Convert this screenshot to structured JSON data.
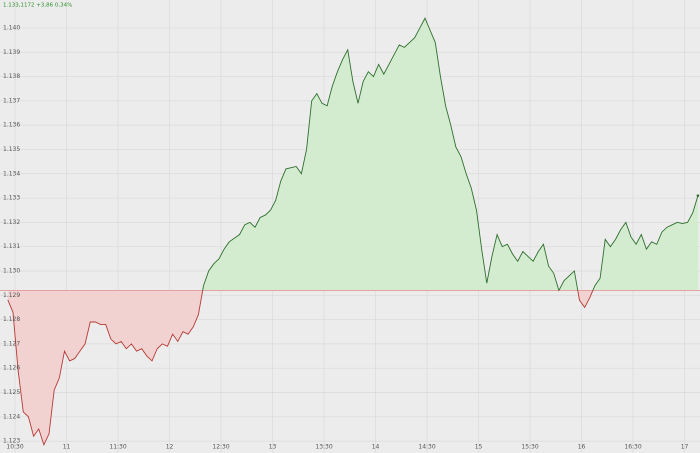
{
  "chart_data": {
    "type": "line",
    "header": "1.133,1172 +3,86 0,34%",
    "x": [
      10.43,
      10.48,
      10.53,
      10.58,
      10.63,
      10.68,
      10.73,
      10.78,
      10.83,
      10.88,
      10.93,
      10.98,
      11.03,
      11.08,
      11.13,
      11.18,
      11.23,
      11.28,
      11.33,
      11.38,
      11.43,
      11.48,
      11.53,
      11.58,
      11.63,
      11.68,
      11.73,
      11.78,
      11.83,
      11.88,
      11.93,
      11.98,
      12.03,
      12.08,
      12.13,
      12.18,
      12.23,
      12.28,
      12.33,
      12.38,
      12.43,
      12.48,
      12.53,
      12.58,
      12.63,
      12.68,
      12.73,
      12.78,
      12.83,
      12.88,
      12.93,
      12.98,
      13.03,
      13.08,
      13.13,
      13.18,
      13.23,
      13.28,
      13.33,
      13.38,
      13.43,
      13.48,
      13.53,
      13.58,
      13.63,
      13.68,
      13.73,
      13.78,
      13.83,
      13.88,
      13.93,
      13.98,
      14.03,
      14.08,
      14.13,
      14.18,
      14.23,
      14.28,
      14.33,
      14.38,
      14.43,
      14.48,
      14.53,
      14.58,
      14.63,
      14.68,
      14.73,
      14.78,
      14.83,
      14.88,
      14.93,
      14.98,
      15.03,
      15.08,
      15.13,
      15.18,
      15.23,
      15.28,
      15.33,
      15.38,
      15.43,
      15.48,
      15.53,
      15.58,
      15.63,
      15.68,
      15.73,
      15.78,
      15.83,
      15.88,
      15.93,
      15.98,
      16.03,
      16.08,
      16.13,
      16.18,
      16.23,
      16.28,
      16.33,
      16.38,
      16.43,
      16.48,
      16.53,
      16.58,
      16.63,
      16.68,
      16.73,
      16.78,
      16.83,
      16.88,
      16.93,
      16.98,
      17.03,
      17.08,
      17.13
    ],
    "values": [
      1128.81,
      1128.3,
      1125.9,
      1124.2,
      1124.0,
      1123.2,
      1123.5,
      1122.85,
      1123.3,
      1125.1,
      1125.6,
      1126.7,
      1126.3,
      1126.4,
      1126.7,
      1127.0,
      1127.9,
      1127.9,
      1127.8,
      1127.8,
      1127.2,
      1127.0,
      1127.1,
      1126.8,
      1127.0,
      1126.7,
      1126.8,
      1126.5,
      1126.3,
      1126.8,
      1127.0,
      1126.9,
      1127.4,
      1127.1,
      1127.5,
      1127.4,
      1127.7,
      1128.2,
      1129.4,
      1130.0,
      1130.3,
      1130.5,
      1130.9,
      1131.2,
      1131.35,
      1131.5,
      1131.9,
      1132.0,
      1131.8,
      1132.2,
      1132.3,
      1132.5,
      1132.9,
      1133.7,
      1134.2,
      1134.25,
      1134.3,
      1134.0,
      1135.0,
      1137.0,
      1137.3,
      1136.9,
      1136.8,
      1137.6,
      1138.2,
      1138.7,
      1139.1,
      1137.8,
      1136.9,
      1137.8,
      1138.2,
      1138.0,
      1138.5,
      1138.1,
      1138.5,
      1138.9,
      1139.3,
      1139.2,
      1139.4,
      1139.6,
      1140.0,
      1140.4,
      1139.9,
      1139.4,
      1138.0,
      1136.8,
      1136.0,
      1135.1,
      1134.7,
      1134.0,
      1133.4,
      1132.5,
      1130.9,
      1129.5,
      1130.6,
      1131.5,
      1131.0,
      1131.1,
      1130.7,
      1130.4,
      1130.8,
      1130.6,
      1130.4,
      1130.8,
      1131.1,
      1130.2,
      1129.9,
      1129.2,
      1129.6,
      1129.8,
      1130.0,
      1128.8,
      1128.5,
      1128.9,
      1129.4,
      1129.7,
      1131.3,
      1131.0,
      1131.3,
      1131.7,
      1132.0,
      1131.4,
      1131.1,
      1131.5,
      1130.9,
      1131.2,
      1131.1,
      1131.6,
      1131.8,
      1131.9,
      1132.0,
      1131.95,
      1132.0,
      1132.4,
      1133.1
    ],
    "baseline": 1129.2,
    "colors": {
      "up_line": "#2f6f2f",
      "up_fill": "#d3ebcf",
      "down_line": "#b53a35",
      "down_fill": "#f1d2d1",
      "baseline": "#e09a96",
      "header": "#2f8f2f"
    },
    "xlim": [
      10.354,
      17.15
    ],
    "ylim": [
      1122.51,
      1141.15
    ],
    "xticks": [
      {
        "value": 10.5,
        "label": "10:30"
      },
      11,
      {
        "value": 11.5,
        "label": "11:30"
      },
      12,
      {
        "value": 12.5,
        "label": "12:30"
      },
      13,
      {
        "value": 13.5,
        "label": "13:30"
      },
      14,
      {
        "value": 14.5,
        "label": "14:30"
      },
      15,
      {
        "value": 15.5,
        "label": "15:30"
      },
      16,
      {
        "value": 16.5,
        "label": "16:30"
      },
      17
    ],
    "yticks": [
      {
        "value": 1140,
        "label": "1.140"
      },
      {
        "value": 1139,
        "label": "1.139"
      },
      {
        "value": 1138,
        "label": "1.138"
      },
      {
        "value": 1137,
        "label": "1.137"
      },
      {
        "value": 1136,
        "label": "1.136"
      },
      {
        "value": 1135,
        "label": "1.135"
      },
      {
        "value": 1134,
        "label": "1.134"
      },
      {
        "value": 1133,
        "label": "1.133"
      },
      {
        "value": 1132,
        "label": "1.132"
      },
      {
        "value": 1131,
        "label": "1.131"
      },
      {
        "value": 1130,
        "label": "1.130"
      },
      {
        "value": 1129,
        "label": "1.129"
      },
      {
        "value": 1128,
        "label": "1.128"
      },
      {
        "value": 1127,
        "label": "1.127"
      },
      {
        "value": 1126,
        "label": "1.126"
      },
      {
        "value": 1125,
        "label": "1.125"
      },
      {
        "value": 1124,
        "label": "1.124"
      },
      {
        "value": 1123,
        "label": "1.123"
      }
    ],
    "grid": true
  }
}
